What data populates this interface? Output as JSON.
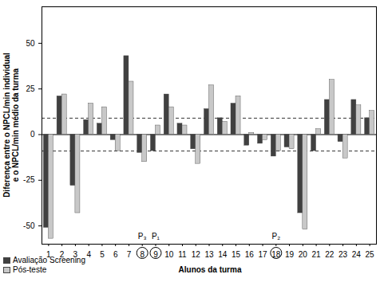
{
  "chart_data": {
    "type": "bar",
    "x_label": "Alunos da turma",
    "y_label": "Diferença entre o NPCL/min individual\ne o NPCL/min médio da turma",
    "categories": [
      "1",
      "2",
      "3",
      "4",
      "5",
      "6",
      "7",
      "8",
      "9",
      "10",
      "11",
      "12",
      "13",
      "14",
      "15",
      "16",
      "17",
      "18",
      "19",
      "20",
      "21",
      "22",
      "23",
      "24",
      "25"
    ],
    "series": [
      {
        "name": "Avaliação Screening",
        "color": "#404040",
        "values": [
          -51,
          21,
          -28,
          8,
          6,
          -3,
          43,
          -10,
          -9,
          22,
          6,
          -8,
          14,
          9,
          17,
          -6,
          -5,
          -12,
          -7,
          -43,
          -9,
          19,
          -4,
          19,
          9
        ]
      },
      {
        "name": "Pós-teste",
        "color": "#c8c8c8",
        "values": [
          -57,
          22,
          -43,
          17,
          15,
          -9,
          29,
          -15,
          5,
          15,
          5,
          -16,
          27,
          7,
          21,
          1,
          -3,
          -9,
          -8,
          -52,
          3,
          30,
          -13,
          16,
          13
        ]
      }
    ],
    "ylim": [
      -60,
      70
    ],
    "yticks": [
      -50,
      -25,
      0,
      25,
      50
    ],
    "reference_lines": [
      9,
      -9
    ],
    "annotations": [
      {
        "label": "P₃",
        "category": "8"
      },
      {
        "label": "P₁",
        "category": "9"
      },
      {
        "label": "P₂",
        "category": "18"
      }
    ],
    "circled": [
      "8",
      "9",
      "18"
    ],
    "legend": "bottom-left"
  }
}
